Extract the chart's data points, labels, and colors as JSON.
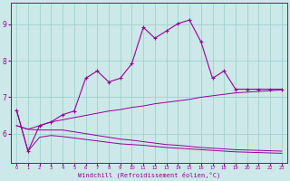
{
  "xlabel": "Windchill (Refroidissement éolien,°C)",
  "bg_color": "#cce8e8",
  "grid_color": "#99cccc",
  "line_color": "#990099",
  "x_main": [
    0,
    1,
    2,
    3,
    4,
    5,
    6,
    7,
    8,
    9,
    10,
    11,
    12,
    13,
    14,
    15,
    16,
    17,
    18,
    19,
    20,
    21,
    22,
    23
  ],
  "y_main": [
    6.65,
    5.52,
    6.22,
    6.32,
    6.52,
    6.62,
    7.52,
    7.72,
    7.42,
    7.52,
    7.92,
    8.92,
    8.62,
    8.82,
    9.02,
    9.12,
    8.52,
    7.52,
    7.72,
    7.22,
    7.22,
    7.22,
    7.22,
    7.22
  ],
  "x_line2": [
    0,
    1,
    2,
    3,
    4,
    5,
    6,
    7,
    8,
    9,
    10,
    11,
    12,
    13,
    14,
    15,
    16,
    17,
    18,
    19,
    20,
    21,
    22,
    23
  ],
  "y_line2": [
    6.22,
    6.12,
    6.22,
    6.32,
    6.38,
    6.44,
    6.5,
    6.56,
    6.62,
    6.66,
    6.72,
    6.76,
    6.82,
    6.86,
    6.9,
    6.94,
    7.0,
    7.04,
    7.08,
    7.12,
    7.14,
    7.16,
    7.18,
    7.2
  ],
  "x_line3": [
    0,
    1,
    2,
    3,
    4,
    5,
    6,
    7,
    8,
    9,
    10,
    11,
    12,
    13,
    14,
    15,
    16,
    17,
    18,
    19,
    20,
    21,
    22,
    23
  ],
  "y_line3": [
    6.22,
    6.12,
    6.1,
    6.1,
    6.1,
    6.05,
    6.0,
    5.95,
    5.9,
    5.85,
    5.82,
    5.78,
    5.74,
    5.7,
    5.68,
    5.65,
    5.62,
    5.6,
    5.58,
    5.56,
    5.55,
    5.54,
    5.53,
    5.52
  ],
  "x_line4": [
    0,
    1,
    2,
    3,
    4,
    5,
    6,
    7,
    8,
    9,
    10,
    11,
    12,
    13,
    14,
    15,
    16,
    17,
    18,
    19,
    20,
    21,
    22,
    23
  ],
  "y_line4": [
    6.65,
    5.52,
    5.9,
    5.95,
    5.92,
    5.88,
    5.84,
    5.8,
    5.76,
    5.72,
    5.7,
    5.68,
    5.65,
    5.62,
    5.6,
    5.58,
    5.56,
    5.54,
    5.52,
    5.5,
    5.49,
    5.48,
    5.47,
    5.46
  ],
  "xlim": [
    -0.5,
    23.5
  ],
  "ylim": [
    5.2,
    9.6
  ],
  "yticks": [
    6,
    7,
    8,
    9
  ],
  "xticks": [
    0,
    1,
    2,
    3,
    4,
    5,
    6,
    7,
    8,
    9,
    10,
    11,
    12,
    13,
    14,
    15,
    16,
    17,
    18,
    19,
    20,
    21,
    22,
    23
  ]
}
